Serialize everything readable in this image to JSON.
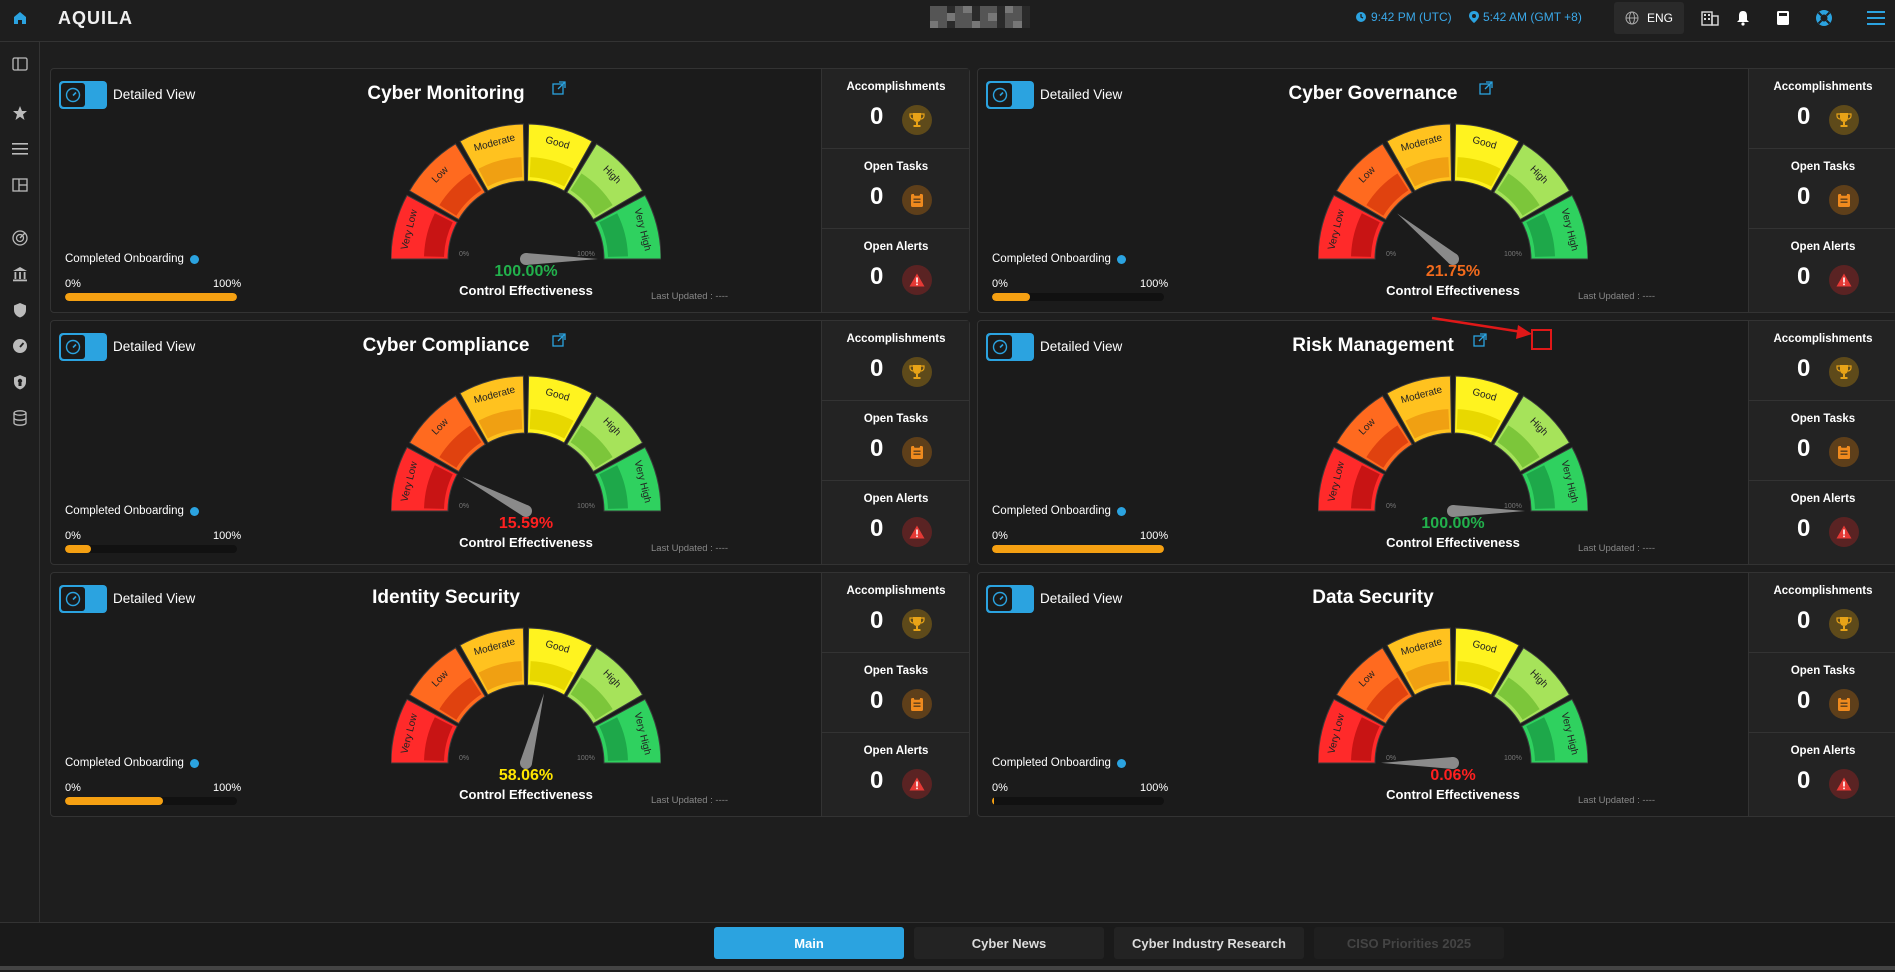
{
  "header": {
    "logo": "AQUILA",
    "time_utc": "9:42 PM (UTC)",
    "time_local": "5:42 AM (GMT +8)",
    "language": "ENG"
  },
  "colors": {
    "accent": "#2ba3e0",
    "onboarding": "#f5a012",
    "green": "#22b14c",
    "orange": "#f26b1d",
    "red": "#ff2020",
    "yellow": "#ffe600"
  },
  "gauge_labels": [
    "Very Low",
    "Low",
    "Moderate",
    "Good",
    "High",
    "Very High"
  ],
  "gauge_min": "0%",
  "gauge_max": "100%",
  "common": {
    "detailed_view": "Detailed View",
    "completed_onboarding": "Completed Onboarding",
    "onb_min": "0%",
    "onb_max": "100%",
    "control_effectiveness": "Control Effectiveness",
    "last_updated": "Last Updated : ----",
    "accomplishments": "Accomplishments",
    "open_tasks": "Open Tasks",
    "open_alerts": "Open Alerts"
  },
  "cards": [
    {
      "title": "Cyber Monitoring",
      "percent": "100.00%",
      "percent_value": 100.0,
      "percent_color": "#22b14c",
      "onboarding": 100,
      "accomplishments": "0",
      "open_tasks": "0",
      "open_alerts": "0",
      "external_link": true
    },
    {
      "title": "Cyber Governance",
      "percent": "21.75%",
      "percent_value": 21.75,
      "percent_color": "#f26b1d",
      "onboarding": 22,
      "accomplishments": "0",
      "open_tasks": "0",
      "open_alerts": "0",
      "external_link": true
    },
    {
      "title": "Cyber Compliance",
      "percent": "15.59%",
      "percent_value": 15.59,
      "percent_color": "#ff2020",
      "onboarding": 15,
      "accomplishments": "0",
      "open_tasks": "0",
      "open_alerts": "0",
      "external_link": true
    },
    {
      "title": "Risk Management",
      "percent": "100.00%",
      "percent_value": 100.0,
      "percent_color": "#22b14c",
      "onboarding": 100,
      "accomplishments": "0",
      "open_tasks": "0",
      "open_alerts": "0",
      "external_link": true
    },
    {
      "title": "Identity Security",
      "percent": "58.06%",
      "percent_value": 58.06,
      "percent_color": "#ffe600",
      "onboarding": 57,
      "accomplishments": "0",
      "open_tasks": "0",
      "open_alerts": "0",
      "external_link": false
    },
    {
      "title": "Data Security",
      "percent": "0.06%",
      "percent_value": 0.06,
      "percent_color": "#ff2020",
      "onboarding": 1,
      "accomplishments": "0",
      "open_tasks": "0",
      "open_alerts": "0",
      "external_link": false
    }
  ],
  "tabs": [
    {
      "label": "Main",
      "active": true
    },
    {
      "label": "Cyber News",
      "active": false
    },
    {
      "label": "Cyber Industry Research",
      "active": false
    },
    {
      "label": "CISO Priorities 2025",
      "active": false
    }
  ],
  "sidebar_icons": [
    "sidebar-toggle-icon",
    "star-icon",
    "menu-icon",
    "layout-icon",
    "radar-icon",
    "bank-icon",
    "shield-icon",
    "gauge-icon",
    "badge-shield-icon",
    "database-icon"
  ]
}
